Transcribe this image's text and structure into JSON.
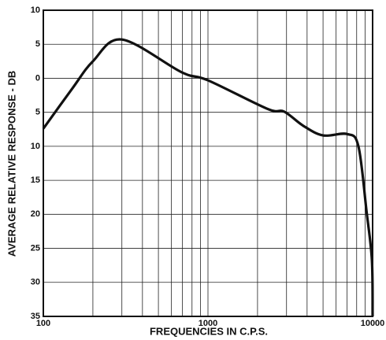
{
  "chart_data": {
    "type": "line",
    "xlabel": "FREQUENCIES IN C.P.S.",
    "ylabel": "AVERAGE RELATIVE RESPONSE - DB",
    "xscale": "log",
    "grid": true,
    "xlim": [
      100,
      10000
    ],
    "xticks": [
      100,
      1000,
      10000
    ],
    "xminor_ticks": [
      200,
      300,
      400,
      500,
      600,
      700,
      800,
      900,
      2000,
      3000,
      4000,
      5000,
      6000,
      7000,
      8000,
      9000
    ],
    "ylim": [
      -35,
      10
    ],
    "yticks": [
      10,
      5,
      0,
      {
        "value": -5,
        "label": "5"
      },
      {
        "value": -10,
        "label": "10"
      },
      {
        "value": -15,
        "label": "15"
      },
      {
        "value": -20,
        "label": "20"
      },
      {
        "value": -25,
        "label": "25"
      },
      {
        "value": -30,
        "label": "30"
      },
      {
        "value": -35,
        "label": "35"
      }
    ],
    "series": [
      {
        "color": "#111111",
        "x": [
          100,
          150,
          200,
          300,
          690,
          1000,
          2300,
          2900,
          3800,
          5000,
          7000,
          8200,
          9200,
          9900,
          10000
        ],
        "values": [
          -7.4,
          -1.5,
          2.5,
          5.7,
          0.9,
          -0.3,
          -4.5,
          -4.9,
          -7,
          -8.4,
          -8.2,
          -10,
          -19.7,
          -26.7,
          -35
        ]
      }
    ]
  }
}
